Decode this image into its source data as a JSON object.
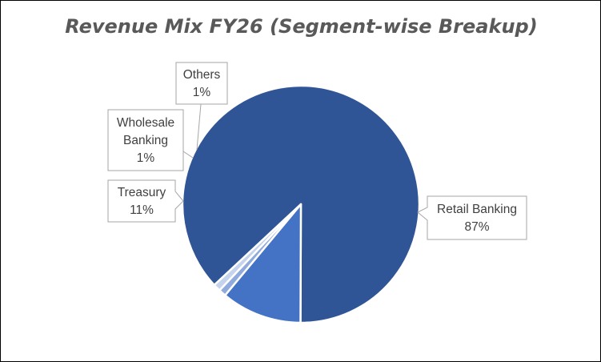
{
  "chart_data": {
    "type": "pie",
    "title": "Revenue Mix FY26 (Segment-wise Breakup)",
    "slices": [
      {
        "label": "Retail Banking",
        "value": 87,
        "display": "87%",
        "color": "#2F5597"
      },
      {
        "label": "Treasury",
        "value": 11,
        "display": "11%",
        "color": "#4472C4"
      },
      {
        "label": "Wholesale Banking",
        "value": 1,
        "display": "1%",
        "color": "#8FAADC"
      },
      {
        "label": "Others",
        "value": 1,
        "display": "1%",
        "color": "#C5D4EC"
      }
    ],
    "legend": "none",
    "data_labels": "callouts"
  }
}
